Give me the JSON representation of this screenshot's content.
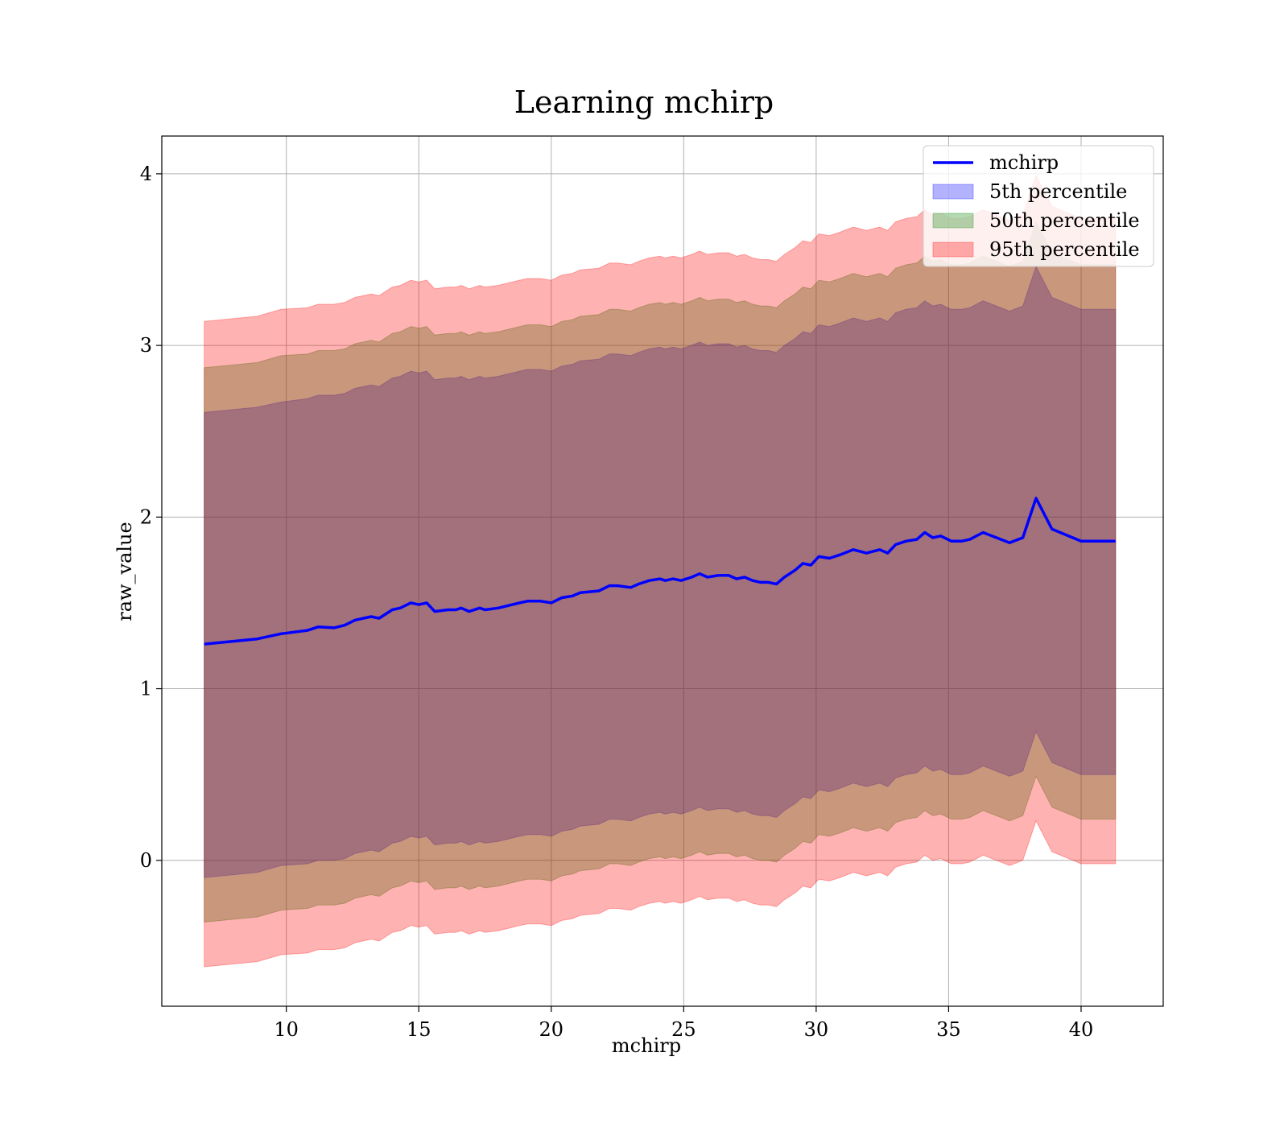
{
  "chart_data": {
    "type": "area",
    "title": "Learning mchirp",
    "xlabel": "mchirp",
    "ylabel": "raw_value",
    "xlim": [
      5.3,
      43.1
    ],
    "ylim": [
      -0.85,
      4.22
    ],
    "x_ticks": [
      10,
      15,
      20,
      25,
      30,
      35,
      40
    ],
    "y_ticks": [
      0,
      1,
      2,
      3,
      4
    ],
    "x_tick_labels": [
      "10",
      "15",
      "20",
      "25",
      "30",
      "35",
      "40"
    ],
    "y_tick_labels": [
      "0",
      "1",
      "2",
      "3",
      "4"
    ],
    "grid": true,
    "legend_position": "top-right",
    "x": [
      6.9,
      8.9,
      9.8,
      10.8,
      11.2,
      11.8,
      12.2,
      12.6,
      13.2,
      13.5,
      14.0,
      14.3,
      14.7,
      15.0,
      15.3,
      15.6,
      16.1,
      16.4,
      16.6,
      16.9,
      17.3,
      17.5,
      18.0,
      18.8,
      19.1,
      19.6,
      20.0,
      20.4,
      20.8,
      21.1,
      21.8,
      22.2,
      22.5,
      23.0,
      23.3,
      23.7,
      24.1,
      24.3,
      24.6,
      24.9,
      25.3,
      25.6,
      25.9,
      26.3,
      26.7,
      27.0,
      27.3,
      27.6,
      27.9,
      28.2,
      28.5,
      28.8,
      29.2,
      29.5,
      29.8,
      30.1,
      30.5,
      30.9,
      31.4,
      31.9,
      32.4,
      32.7,
      33.0,
      33.4,
      33.8,
      34.1,
      34.4,
      34.7,
      35.1,
      35.5,
      35.8,
      36.3,
      36.8,
      37.3,
      37.8,
      38.3,
      38.9,
      40.0,
      41.3
    ],
    "series": [
      {
        "name": "mchirp",
        "kind": "line",
        "color": "#0000ff",
        "values": [
          1.26,
          1.29,
          1.32,
          1.34,
          1.36,
          1.355,
          1.37,
          1.4,
          1.42,
          1.41,
          1.46,
          1.47,
          1.5,
          1.49,
          1.5,
          1.45,
          1.46,
          1.46,
          1.47,
          1.45,
          1.47,
          1.46,
          1.47,
          1.5,
          1.51,
          1.51,
          1.5,
          1.53,
          1.54,
          1.56,
          1.57,
          1.6,
          1.6,
          1.59,
          1.61,
          1.63,
          1.64,
          1.63,
          1.64,
          1.63,
          1.65,
          1.67,
          1.65,
          1.66,
          1.66,
          1.64,
          1.65,
          1.63,
          1.62,
          1.62,
          1.61,
          1.65,
          1.69,
          1.73,
          1.72,
          1.77,
          1.76,
          1.78,
          1.81,
          1.79,
          1.81,
          1.79,
          1.84,
          1.86,
          1.87,
          1.91,
          1.88,
          1.89,
          1.86,
          1.86,
          1.87,
          1.91,
          1.88,
          1.85,
          1.88,
          2.11,
          1.93,
          1.86,
          1.86
        ]
      },
      {
        "name": "5th percentile",
        "kind": "band",
        "color": "#0000ff",
        "opacity": 0.3,
        "lower": [
          -0.1,
          -0.07,
          -0.03,
          -0.02,
          0.0,
          0.0,
          0.01,
          0.04,
          0.06,
          0.05,
          0.1,
          0.11,
          0.14,
          0.13,
          0.14,
          0.09,
          0.1,
          0.1,
          0.11,
          0.09,
          0.11,
          0.1,
          0.11,
          0.14,
          0.15,
          0.15,
          0.14,
          0.17,
          0.18,
          0.2,
          0.21,
          0.24,
          0.24,
          0.23,
          0.25,
          0.27,
          0.28,
          0.27,
          0.28,
          0.27,
          0.29,
          0.31,
          0.29,
          0.3,
          0.3,
          0.28,
          0.29,
          0.27,
          0.26,
          0.26,
          0.25,
          0.29,
          0.33,
          0.37,
          0.36,
          0.41,
          0.4,
          0.42,
          0.45,
          0.43,
          0.45,
          0.43,
          0.48,
          0.5,
          0.51,
          0.55,
          0.52,
          0.53,
          0.5,
          0.5,
          0.51,
          0.55,
          0.52,
          0.49,
          0.52,
          0.75,
          0.57,
          0.5,
          0.5
        ],
        "upper": [
          2.61,
          2.64,
          2.67,
          2.69,
          2.71,
          2.71,
          2.72,
          2.75,
          2.77,
          2.76,
          2.81,
          2.82,
          2.85,
          2.84,
          2.85,
          2.8,
          2.81,
          2.81,
          2.82,
          2.8,
          2.82,
          2.81,
          2.82,
          2.85,
          2.86,
          2.86,
          2.85,
          2.88,
          2.89,
          2.91,
          2.92,
          2.95,
          2.95,
          2.94,
          2.96,
          2.98,
          2.99,
          2.98,
          2.99,
          2.98,
          3.0,
          3.02,
          3.0,
          3.01,
          3.01,
          2.99,
          3.0,
          2.98,
          2.97,
          2.97,
          2.96,
          3.0,
          3.04,
          3.08,
          3.07,
          3.12,
          3.11,
          3.13,
          3.16,
          3.14,
          3.16,
          3.14,
          3.19,
          3.21,
          3.22,
          3.26,
          3.23,
          3.24,
          3.21,
          3.21,
          3.22,
          3.26,
          3.23,
          3.2,
          3.23,
          3.46,
          3.28,
          3.21,
          3.21
        ]
      },
      {
        "name": "50th percentile",
        "kind": "band",
        "color": "#008000",
        "opacity": 0.3,
        "lower": [
          -0.36,
          -0.33,
          -0.29,
          -0.28,
          -0.26,
          -0.26,
          -0.25,
          -0.22,
          -0.2,
          -0.21,
          -0.16,
          -0.15,
          -0.12,
          -0.13,
          -0.12,
          -0.17,
          -0.16,
          -0.16,
          -0.15,
          -0.17,
          -0.15,
          -0.16,
          -0.15,
          -0.12,
          -0.11,
          -0.11,
          -0.12,
          -0.09,
          -0.08,
          -0.06,
          -0.05,
          -0.02,
          -0.02,
          -0.03,
          -0.01,
          0.01,
          0.02,
          0.01,
          0.02,
          0.01,
          0.03,
          0.05,
          0.03,
          0.04,
          0.04,
          0.02,
          0.03,
          0.01,
          0.0,
          0.0,
          -0.01,
          0.03,
          0.07,
          0.11,
          0.1,
          0.15,
          0.14,
          0.16,
          0.19,
          0.17,
          0.19,
          0.17,
          0.22,
          0.24,
          0.25,
          0.29,
          0.26,
          0.27,
          0.24,
          0.24,
          0.25,
          0.29,
          0.26,
          0.23,
          0.26,
          0.49,
          0.31,
          0.24,
          0.24
        ],
        "upper": [
          2.87,
          2.9,
          2.94,
          2.95,
          2.97,
          2.97,
          2.98,
          3.01,
          3.03,
          3.02,
          3.07,
          3.08,
          3.11,
          3.1,
          3.11,
          3.06,
          3.07,
          3.07,
          3.08,
          3.06,
          3.08,
          3.07,
          3.08,
          3.11,
          3.12,
          3.12,
          3.11,
          3.14,
          3.15,
          3.17,
          3.18,
          3.21,
          3.21,
          3.2,
          3.22,
          3.24,
          3.25,
          3.24,
          3.25,
          3.24,
          3.26,
          3.28,
          3.26,
          3.27,
          3.27,
          3.25,
          3.26,
          3.24,
          3.23,
          3.23,
          3.22,
          3.26,
          3.3,
          3.34,
          3.33,
          3.38,
          3.37,
          3.39,
          3.42,
          3.4,
          3.42,
          3.4,
          3.45,
          3.47,
          3.48,
          3.52,
          3.49,
          3.5,
          3.47,
          3.47,
          3.48,
          3.52,
          3.49,
          3.46,
          3.49,
          3.72,
          3.54,
          3.47,
          3.47
        ]
      },
      {
        "name": "95th percentile",
        "kind": "band",
        "color": "#ff0000",
        "opacity": 0.3,
        "lower": [
          -0.62,
          -0.59,
          -0.55,
          -0.54,
          -0.52,
          -0.52,
          -0.51,
          -0.48,
          -0.46,
          -0.47,
          -0.42,
          -0.41,
          -0.38,
          -0.39,
          -0.38,
          -0.43,
          -0.42,
          -0.42,
          -0.41,
          -0.43,
          -0.41,
          -0.42,
          -0.41,
          -0.38,
          -0.37,
          -0.37,
          -0.38,
          -0.35,
          -0.34,
          -0.32,
          -0.31,
          -0.28,
          -0.28,
          -0.29,
          -0.27,
          -0.25,
          -0.24,
          -0.25,
          -0.24,
          -0.25,
          -0.23,
          -0.21,
          -0.23,
          -0.22,
          -0.22,
          -0.24,
          -0.23,
          -0.25,
          -0.26,
          -0.26,
          -0.27,
          -0.23,
          -0.19,
          -0.15,
          -0.16,
          -0.11,
          -0.12,
          -0.1,
          -0.07,
          -0.09,
          -0.07,
          -0.09,
          -0.04,
          -0.02,
          -0.01,
          0.03,
          0.0,
          0.01,
          -0.02,
          -0.02,
          -0.01,
          0.03,
          0.0,
          -0.03,
          0.0,
          0.23,
          0.05,
          -0.02,
          -0.02
        ],
        "upper": [
          3.14,
          3.17,
          3.21,
          3.22,
          3.24,
          3.24,
          3.25,
          3.28,
          3.3,
          3.29,
          3.34,
          3.35,
          3.38,
          3.37,
          3.38,
          3.33,
          3.34,
          3.34,
          3.35,
          3.33,
          3.35,
          3.34,
          3.35,
          3.38,
          3.39,
          3.39,
          3.38,
          3.41,
          3.42,
          3.44,
          3.45,
          3.48,
          3.48,
          3.47,
          3.49,
          3.51,
          3.52,
          3.51,
          3.52,
          3.51,
          3.53,
          3.55,
          3.53,
          3.54,
          3.54,
          3.52,
          3.53,
          3.51,
          3.5,
          3.5,
          3.49,
          3.53,
          3.57,
          3.61,
          3.6,
          3.65,
          3.64,
          3.66,
          3.69,
          3.67,
          3.69,
          3.67,
          3.72,
          3.74,
          3.75,
          3.79,
          3.76,
          3.77,
          3.74,
          3.74,
          3.75,
          3.79,
          3.76,
          3.73,
          3.76,
          3.99,
          3.81,
          3.74,
          3.74
        ]
      }
    ]
  }
}
